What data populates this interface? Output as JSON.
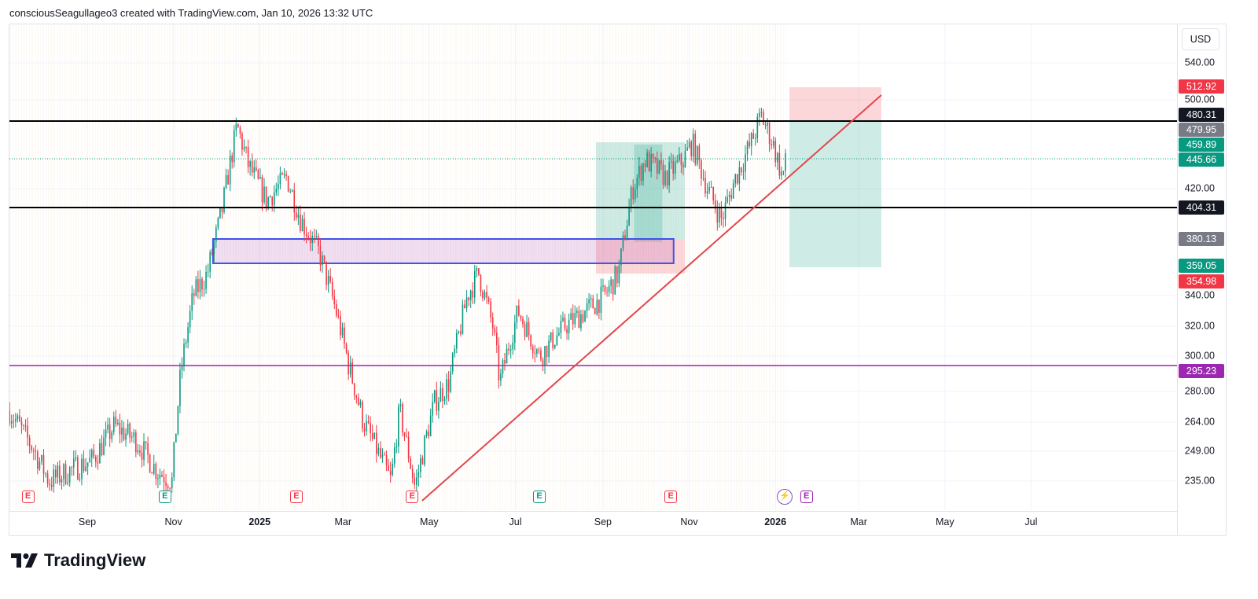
{
  "header": {
    "text": "consciousSeagullageo3 created with TradingView.com, Jan 10, 2026 13:32 UTC"
  },
  "brand": {
    "logo_text": "TradingView"
  },
  "chart_data": {
    "type": "candlestick",
    "currency": "USD",
    "y_scale": "log",
    "ylim": [
      228,
      560
    ],
    "xlim": [
      "2024-07-08",
      "2026-08-10"
    ],
    "y_ticks": [
      "540.00",
      "500.00",
      "420.00",
      "340.00",
      "320.00",
      "300.00",
      "280.00",
      "264.00",
      "249.00",
      "235.00"
    ],
    "x_ticks": [
      {
        "label": "Sep",
        "date": "2024-09-01"
      },
      {
        "label": "Nov",
        "date": "2024-11-01"
      },
      {
        "label": "2025",
        "date": "2025-01-01",
        "bold": true
      },
      {
        "label": "Mar",
        "date": "2025-03-01"
      },
      {
        "label": "May",
        "date": "2025-05-01"
      },
      {
        "label": "Jul",
        "date": "2025-07-01"
      },
      {
        "label": "Sep",
        "date": "2025-09-01"
      },
      {
        "label": "Nov",
        "date": "2025-11-01"
      },
      {
        "label": "2026",
        "date": "2026-01-01",
        "bold": true
      },
      {
        "label": "Mar",
        "date": "2026-03-01"
      },
      {
        "label": "May",
        "date": "2026-05-01"
      },
      {
        "label": "Jul",
        "date": "2026-07-01"
      }
    ],
    "approx_closes": [
      [
        "2024-07-08",
        270
      ],
      [
        "2024-07-25",
        250
      ],
      [
        "2024-08-05",
        235
      ],
      [
        "2024-08-20",
        240
      ],
      [
        "2024-09-05",
        245
      ],
      [
        "2024-09-20",
        262
      ],
      [
        "2024-10-05",
        255
      ],
      [
        "2024-10-20",
        240
      ],
      [
        "2024-10-31",
        235
      ],
      [
        "2024-11-06",
        290
      ],
      [
        "2024-11-15",
        340
      ],
      [
        "2024-11-25",
        355
      ],
      [
        "2024-12-05",
        400
      ],
      [
        "2024-12-16",
        475
      ],
      [
        "2024-12-24",
        440
      ],
      [
        "2025-01-06",
        410
      ],
      [
        "2025-01-20",
        430
      ],
      [
        "2025-01-30",
        395
      ],
      [
        "2025-02-12",
        370
      ],
      [
        "2025-02-24",
        330
      ],
      [
        "2025-03-05",
        295
      ],
      [
        "2025-03-15",
        265
      ],
      [
        "2025-03-28",
        245
      ],
      [
        "2025-04-04",
        235
      ],
      [
        "2025-04-10",
        270
      ],
      [
        "2025-04-21",
        232
      ],
      [
        "2025-05-05",
        275
      ],
      [
        "2025-05-15",
        285
      ],
      [
        "2025-05-28",
        340
      ],
      [
        "2025-06-05",
        355
      ],
      [
        "2025-06-15",
        320
      ],
      [
        "2025-06-20",
        285
      ],
      [
        "2025-07-03",
        330
      ],
      [
        "2025-07-18",
        300
      ],
      [
        "2025-08-05",
        320
      ],
      [
        "2025-08-20",
        330
      ],
      [
        "2025-09-02",
        340
      ],
      [
        "2025-09-12",
        355
      ],
      [
        "2025-09-22",
        420
      ],
      [
        "2025-10-01",
        445
      ],
      [
        "2025-10-15",
        430
      ],
      [
        "2025-10-28",
        445
      ],
      [
        "2025-11-03",
        460
      ],
      [
        "2025-11-14",
        420
      ],
      [
        "2025-11-24",
        395
      ],
      [
        "2025-12-04",
        430
      ],
      [
        "2025-12-15",
        460
      ],
      [
        "2025-12-22",
        485
      ],
      [
        "2025-12-30",
        460
      ],
      [
        "2026-01-06",
        430
      ],
      [
        "2026-01-09",
        445.66
      ]
    ],
    "colors": {
      "up": "#089981",
      "down": "#f23645"
    },
    "price_labels": [
      {
        "value": "512.92",
        "color": "#f23645"
      },
      {
        "value": "480.31",
        "color": "#131722"
      },
      {
        "value": "479.95",
        "color": "#787b86"
      },
      {
        "value": "459.89",
        "color": "#089981"
      },
      {
        "value": "445.66",
        "color": "#089981"
      },
      {
        "value": "404.31",
        "color": "#131722"
      },
      {
        "value": "380.13",
        "color": "#787b86"
      },
      {
        "value": "359.05",
        "color": "#089981"
      },
      {
        "value": "354.98",
        "color": "#f23645"
      },
      {
        "value": "295.23",
        "color": "#9c27b0"
      }
    ],
    "drawings": {
      "horizontal_lines": [
        {
          "price": 479.95,
          "color": "#000000"
        },
        {
          "price": 404.31,
          "color": "#000000"
        },
        {
          "price": 295.23,
          "color": "#9c27b0"
        }
      ],
      "last_price_line": {
        "price": 445.66,
        "color": "#089981"
      },
      "trendline": {
        "from": [
          "2025-04-26",
          229
        ],
        "to": [
          "2026-03-17",
          505
        ],
        "color": "#e0474c"
      },
      "rectangle": {
        "from": [
          "2024-11-29",
          380.13
        ],
        "to": [
          "2025-10-21",
          362
        ],
        "color": "#3f51e8"
      },
      "long_position": {
        "from": "2025-08-27",
        "to": "2025-10-29",
        "entry": 380.13,
        "target": 459.89,
        "stop": 354.98
      },
      "short_position": {
        "from": "2026-01-11",
        "to": "2026-03-17",
        "entry": 479.95,
        "stop": 512.92,
        "target": 359.05
      }
    },
    "events": [
      {
        "date": "2024-07-21",
        "type": "E",
        "color": "#f23645"
      },
      {
        "date": "2024-10-26",
        "type": "E",
        "color": "#089981"
      },
      {
        "date": "2025-01-27",
        "type": "E",
        "color": "#f23645"
      },
      {
        "date": "2025-04-19",
        "type": "E",
        "color": "#f23645"
      },
      {
        "date": "2025-07-18",
        "type": "E",
        "color": "#089981"
      },
      {
        "date": "2025-10-19",
        "type": "E",
        "color": "#f23645"
      },
      {
        "date": "2026-01-23",
        "type": "E",
        "color": "#9c27b0"
      }
    ]
  }
}
